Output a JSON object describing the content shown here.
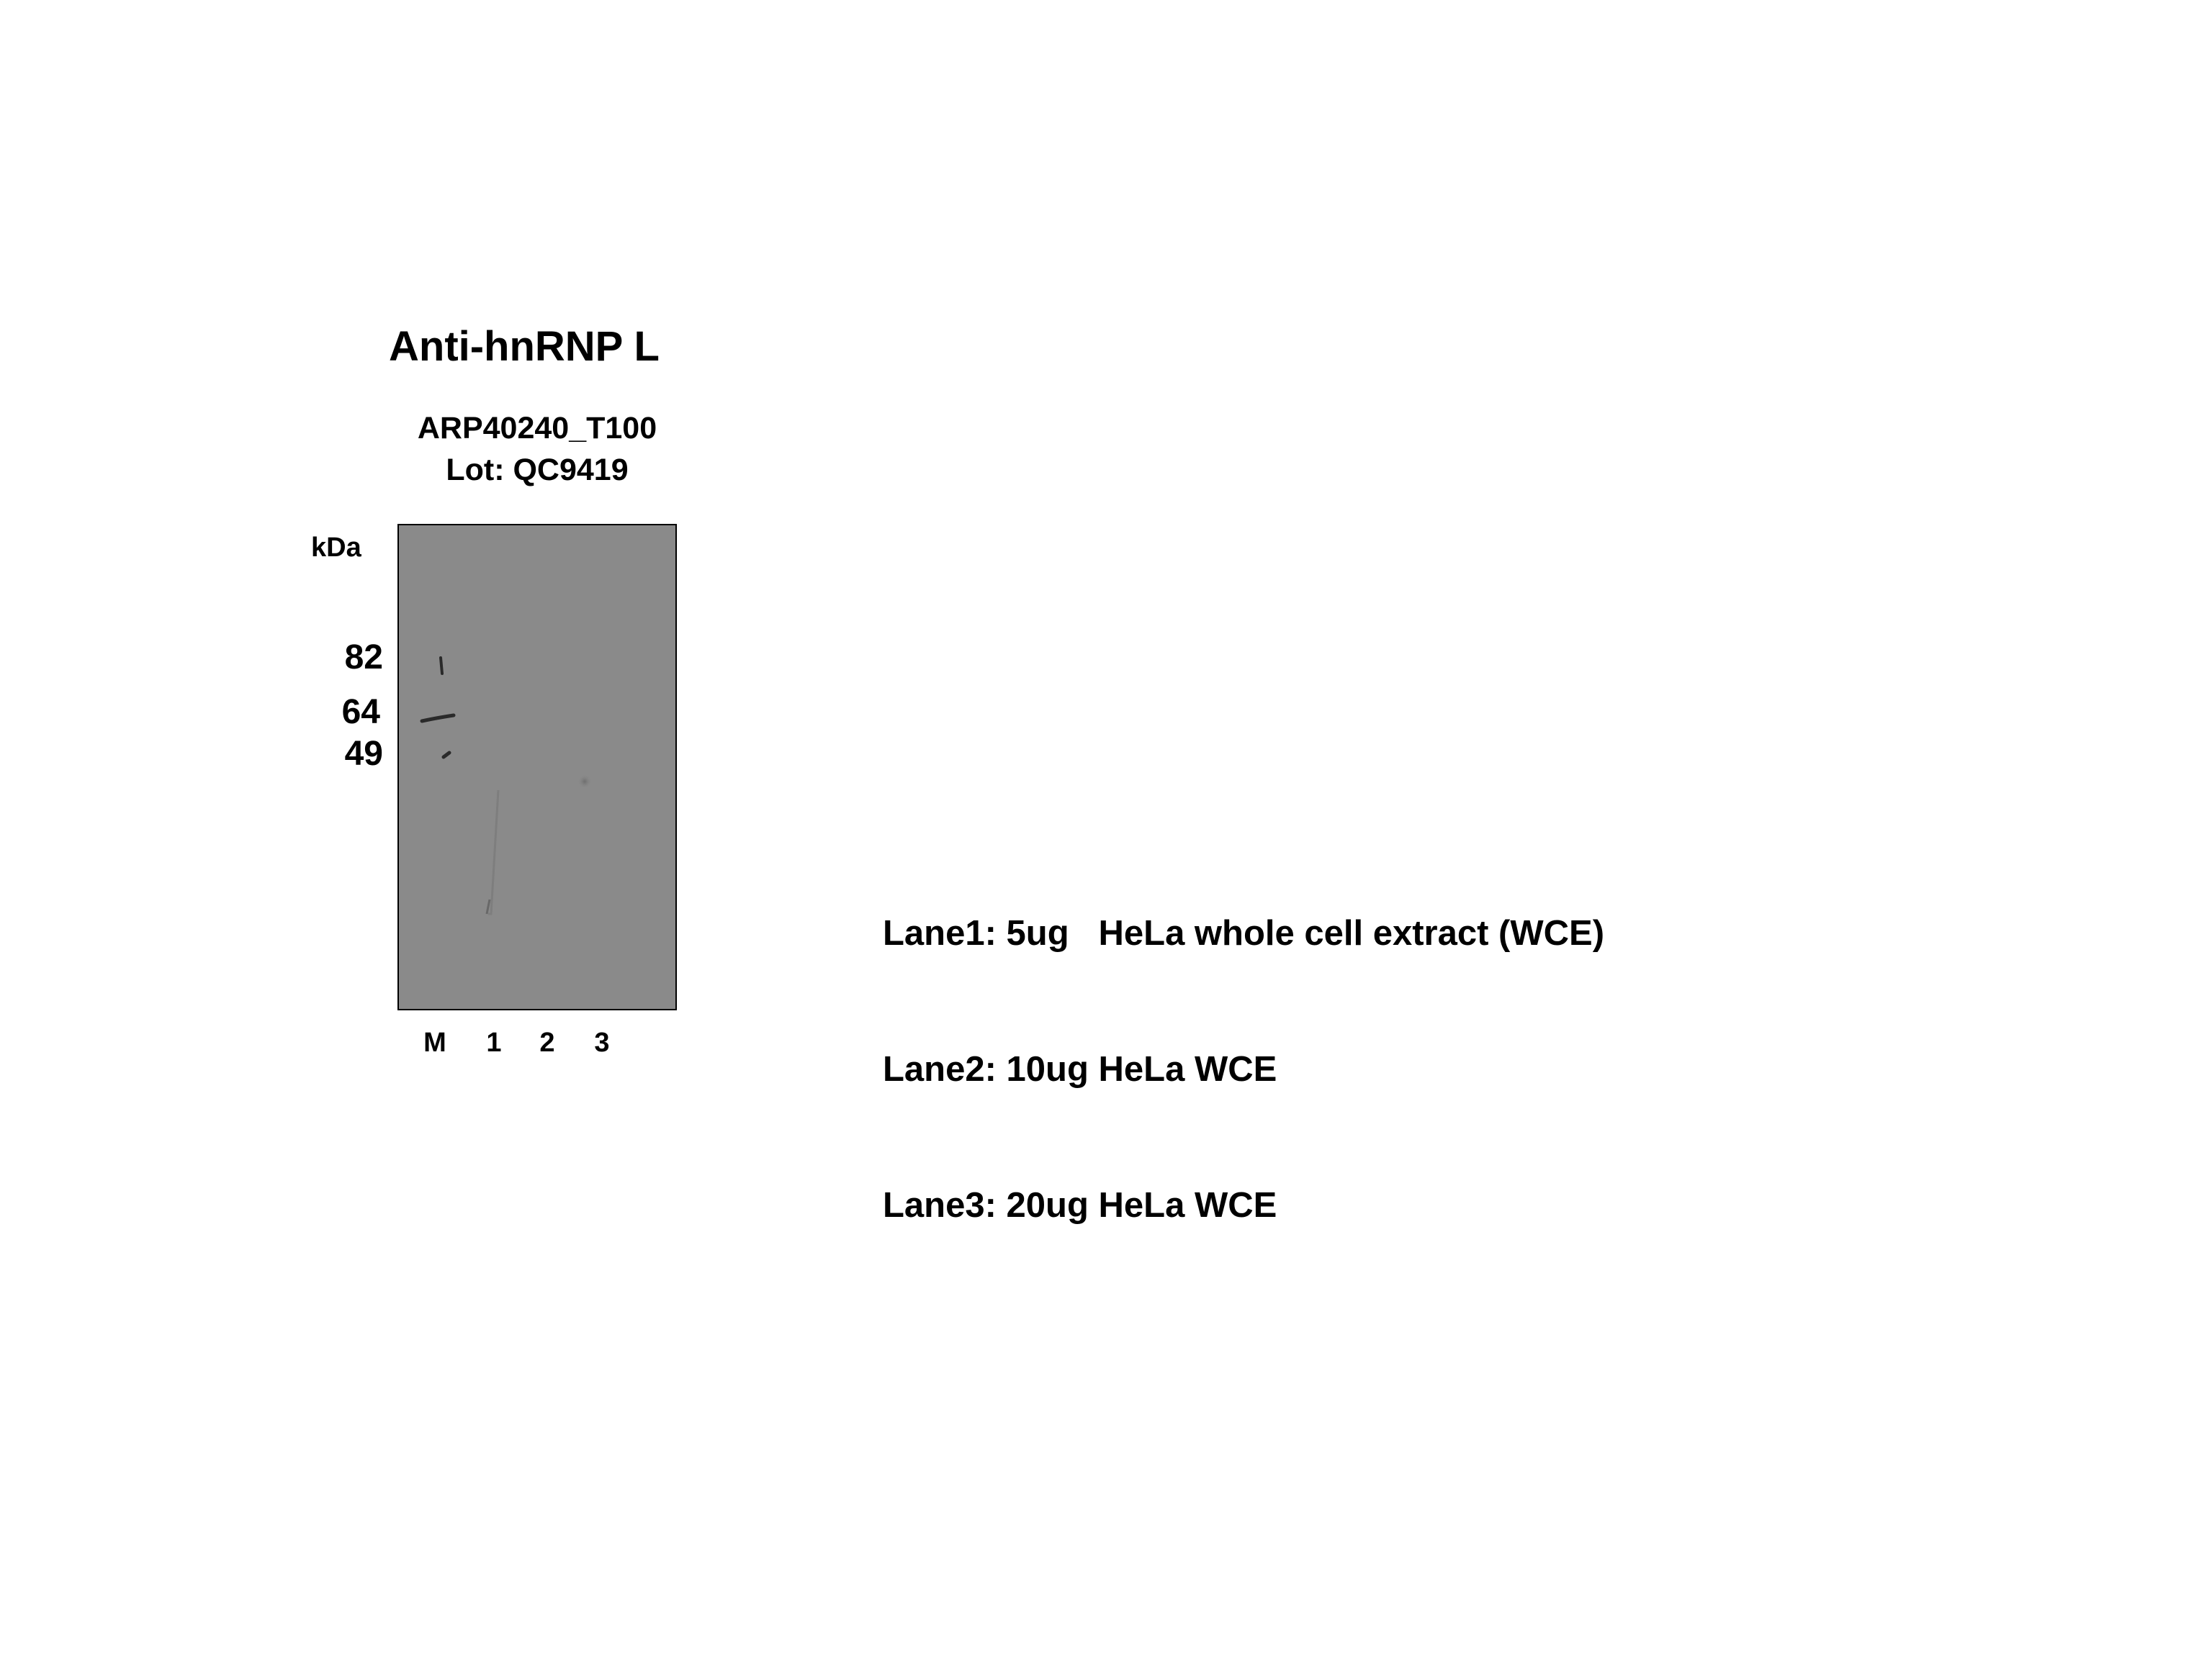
{
  "title": "Anti-hnRNP L",
  "catalog_number": "ARP40240_T100",
  "lot": "Lot: QC9419",
  "unit_label": "kDa",
  "markers": [
    {
      "label": "82",
      "kda": 82
    },
    {
      "label": "64",
      "kda": 64
    },
    {
      "label": "49",
      "kda": 49
    }
  ],
  "lanes": [
    "M",
    "1",
    "2",
    "3"
  ],
  "legend": [
    "Lane1: 5ug   HeLa whole cell extract (WCE)",
    "Lane2: 10ug HeLa WCE",
    "Lane3: 20ug HeLa WCE"
  ],
  "colors": {
    "membrane": "#8a8a8a",
    "band": "#2a2a2a"
  }
}
